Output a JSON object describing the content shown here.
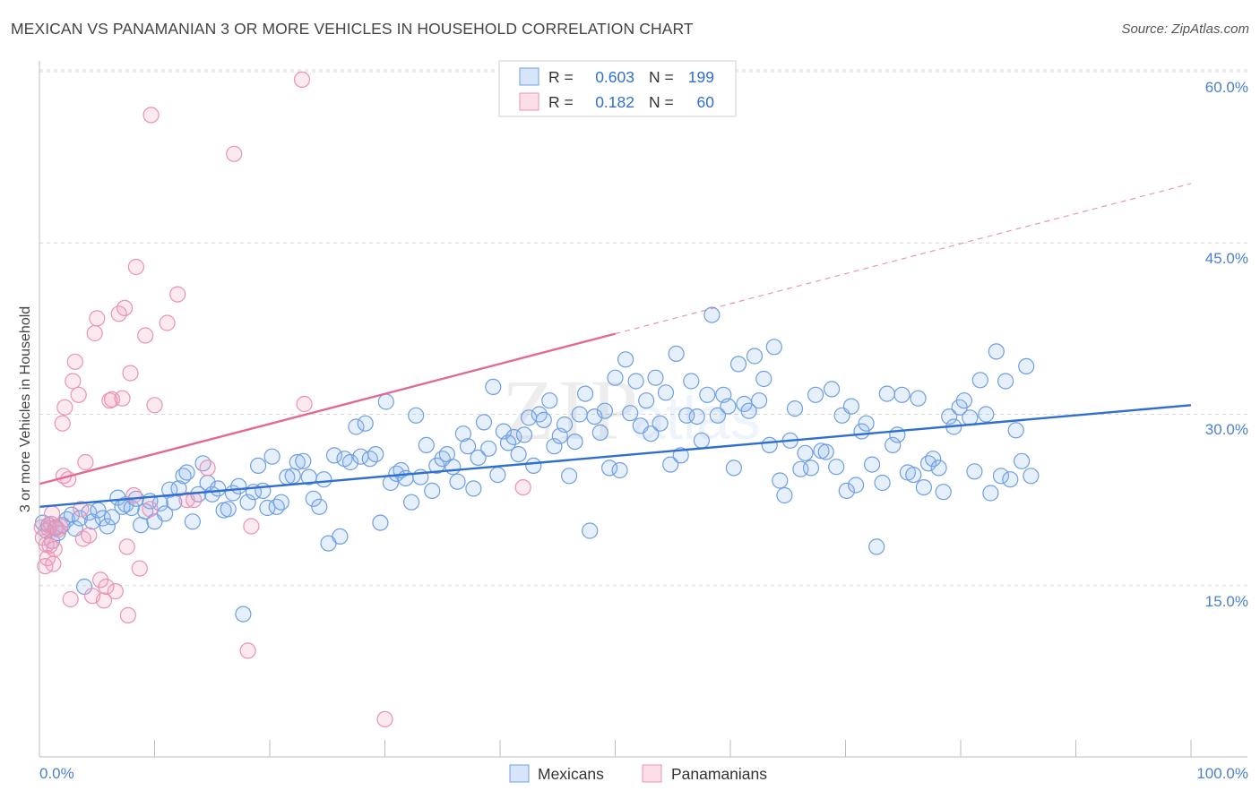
{
  "title": "MEXICAN VS PANAMANIAN 3 OR MORE VEHICLES IN HOUSEHOLD CORRELATION CHART",
  "source": "Source: ZipAtlas.com",
  "watermark": {
    "zip": "ZIP",
    "atlas": "atlas"
  },
  "colors": {
    "blue_fill": "rgba(140,180,240,0.22)",
    "blue_stroke": "#6f9fe0",
    "blue_line": "#2f6fd0",
    "pink_fill": "rgba(245,160,190,0.22)",
    "pink_stroke": "#e893b2",
    "pink_line": "#e06a94",
    "tick_label": "#4a7fd4",
    "grid": "#d8d8d8"
  },
  "stats": {
    "r_label": "R =",
    "n_label": "N =",
    "rows": [
      {
        "r": "0.603",
        "n": "199"
      },
      {
        "r": "0.182",
        "n": "60"
      }
    ]
  },
  "chart_data": {
    "type": "scatter",
    "title": "MEXICAN VS PANAMANIAN 3 OR MORE VEHICLES IN HOUSEHOLD CORRELATION CHART",
    "xlabel": "",
    "ylabel": "3 or more Vehicles in Household",
    "xlim": [
      0,
      100
    ],
    "ylim": [
      0,
      63
    ],
    "x_tick_labels": [
      "0.0%",
      "100.0%"
    ],
    "y_ticks": [
      15,
      30,
      45,
      60
    ],
    "y_tick_labels": [
      "15.0%",
      "30.0%",
      "45.0%",
      "60.0%"
    ],
    "grid": true,
    "legend_position": "bottom-center",
    "series": [
      {
        "name": "Mexicans",
        "regression": {
          "x": [
            0,
            100
          ],
          "y": [
            21.9,
            30.8
          ],
          "solid_to": 100
        },
        "points": [
          [
            0.3,
            20.5
          ],
          [
            0.6,
            19.8
          ],
          [
            0.8,
            20.3
          ],
          [
            1.1,
            18.9
          ],
          [
            1.4,
            20.1
          ],
          [
            1.6,
            19.6
          ],
          [
            2.0,
            20.3
          ],
          [
            2.4,
            20.8
          ],
          [
            2.8,
            21.2
          ],
          [
            3.1,
            20.0
          ],
          [
            3.5,
            20.9
          ],
          [
            3.9,
            14.9
          ],
          [
            4.3,
            21.4
          ],
          [
            4.6,
            20.6
          ],
          [
            5.1,
            21.6
          ],
          [
            5.5,
            20.9
          ],
          [
            5.9,
            20.2
          ],
          [
            6.3,
            21.0
          ],
          [
            6.8,
            22.7
          ],
          [
            7.2,
            21.9
          ],
          [
            7.5,
            22.1
          ],
          [
            8.0,
            21.8
          ],
          [
            8.4,
            22.6
          ],
          [
            8.8,
            20.3
          ],
          [
            9.2,
            21.5
          ],
          [
            9.6,
            22.4
          ],
          [
            10.0,
            20.6
          ],
          [
            10.5,
            22.2
          ],
          [
            10.9,
            21.3
          ],
          [
            11.3,
            23.4
          ],
          [
            11.7,
            22.3
          ],
          [
            12.1,
            23.5
          ],
          [
            12.5,
            24.6
          ],
          [
            12.8,
            24.9
          ],
          [
            13.3,
            20.6
          ],
          [
            13.8,
            23.0
          ],
          [
            14.2,
            25.7
          ],
          [
            14.6,
            24.0
          ],
          [
            15.0,
            23.0
          ],
          [
            15.5,
            23.5
          ],
          [
            16.0,
            21.6
          ],
          [
            16.4,
            21.7
          ],
          [
            16.8,
            23.1
          ],
          [
            17.3,
            23.7
          ],
          [
            17.7,
            12.5
          ],
          [
            18.1,
            22.3
          ],
          [
            18.6,
            23.2
          ],
          [
            19.0,
            25.5
          ],
          [
            19.4,
            23.3
          ],
          [
            19.8,
            21.8
          ],
          [
            20.2,
            26.3
          ],
          [
            20.6,
            21.9
          ],
          [
            21.0,
            22.3
          ],
          [
            21.5,
            24.5
          ],
          [
            22.0,
            24.6
          ],
          [
            22.4,
            25.8
          ],
          [
            22.9,
            25.9
          ],
          [
            23.4,
            24.5
          ],
          [
            23.8,
            22.6
          ],
          [
            24.3,
            21.9
          ],
          [
            24.7,
            24.3
          ],
          [
            25.1,
            18.7
          ],
          [
            25.6,
            26.4
          ],
          [
            26.1,
            19.3
          ],
          [
            26.5,
            26.1
          ],
          [
            27.0,
            25.8
          ],
          [
            27.5,
            28.9
          ],
          [
            27.9,
            26.3
          ],
          [
            28.3,
            29.2
          ],
          [
            28.7,
            26.1
          ],
          [
            29.2,
            26.5
          ],
          [
            29.6,
            20.5
          ],
          [
            30.1,
            31.1
          ],
          [
            30.5,
            24.0
          ],
          [
            31.0,
            24.8
          ],
          [
            31.4,
            25.1
          ],
          [
            31.8,
            24.4
          ],
          [
            32.3,
            22.3
          ],
          [
            32.7,
            29.9
          ],
          [
            33.1,
            24.5
          ],
          [
            33.6,
            27.3
          ],
          [
            34.1,
            23.3
          ],
          [
            34.5,
            25.5
          ],
          [
            35.0,
            26.1
          ],
          [
            35.4,
            26.5
          ],
          [
            35.9,
            25.4
          ],
          [
            36.3,
            24.1
          ],
          [
            36.8,
            28.3
          ],
          [
            37.2,
            27.2
          ],
          [
            37.7,
            23.5
          ],
          [
            38.1,
            26.2
          ],
          [
            38.6,
            29.3
          ],
          [
            39.0,
            27.0
          ],
          [
            39.4,
            32.4
          ],
          [
            39.8,
            24.7
          ],
          [
            40.3,
            28.5
          ],
          [
            40.7,
            27.5
          ],
          [
            41.2,
            28.0
          ],
          [
            41.6,
            26.5
          ],
          [
            42.1,
            28.2
          ],
          [
            42.5,
            29.7
          ],
          [
            42.9,
            25.5
          ],
          [
            43.4,
            30.0
          ],
          [
            43.8,
            29.5
          ],
          [
            44.3,
            31.2
          ],
          [
            44.7,
            27.2
          ],
          [
            45.2,
            28.1
          ],
          [
            45.6,
            29.1
          ],
          [
            46.0,
            24.6
          ],
          [
            46.5,
            27.6
          ],
          [
            46.9,
            30.0
          ],
          [
            47.4,
            31.8
          ],
          [
            47.8,
            19.8
          ],
          [
            48.2,
            29.8
          ],
          [
            48.7,
            28.4
          ],
          [
            49.1,
            30.3
          ],
          [
            49.5,
            25.3
          ],
          [
            50.0,
            33.2
          ],
          [
            50.4,
            25.1
          ],
          [
            50.9,
            34.8
          ],
          [
            51.3,
            30.1
          ],
          [
            51.8,
            32.9
          ],
          [
            52.2,
            29.0
          ],
          [
            52.7,
            31.2
          ],
          [
            53.1,
            28.3
          ],
          [
            53.5,
            33.2
          ],
          [
            53.9,
            29.2
          ],
          [
            54.4,
            31.9
          ],
          [
            54.8,
            25.6
          ],
          [
            55.3,
            35.3
          ],
          [
            55.7,
            26.4
          ],
          [
            56.2,
            29.9
          ],
          [
            56.6,
            32.9
          ],
          [
            57.1,
            29.8
          ],
          [
            57.5,
            27.7
          ],
          [
            58.0,
            31.7
          ],
          [
            58.4,
            38.7
          ],
          [
            58.9,
            29.9
          ],
          [
            59.4,
            31.7
          ],
          [
            59.8,
            30.7
          ],
          [
            60.3,
            25.3
          ],
          [
            60.7,
            34.4
          ],
          [
            61.2,
            30.9
          ],
          [
            61.6,
            30.3
          ],
          [
            62.1,
            35.1
          ],
          [
            62.5,
            31.2
          ],
          [
            62.9,
            33.1
          ],
          [
            63.4,
            27.3
          ],
          [
            63.8,
            35.9
          ],
          [
            64.3,
            24.2
          ],
          [
            64.7,
            22.9
          ],
          [
            65.2,
            27.7
          ],
          [
            65.6,
            30.5
          ],
          [
            66.1,
            25.2
          ],
          [
            66.5,
            26.6
          ],
          [
            67.0,
            25.3
          ],
          [
            67.4,
            31.7
          ],
          [
            67.9,
            26.8
          ],
          [
            68.3,
            26.7
          ],
          [
            68.8,
            32.2
          ],
          [
            69.2,
            25.4
          ],
          [
            69.7,
            29.9
          ],
          [
            70.1,
            23.3
          ],
          [
            70.5,
            30.7
          ],
          [
            70.9,
            23.8
          ],
          [
            71.4,
            28.5
          ],
          [
            71.8,
            29.2
          ],
          [
            72.3,
            25.6
          ],
          [
            72.7,
            18.4
          ],
          [
            73.2,
            24.0
          ],
          [
            73.6,
            31.8
          ],
          [
            74.1,
            27.3
          ],
          [
            74.5,
            28.2
          ],
          [
            74.9,
            31.7
          ],
          [
            75.4,
            24.9
          ],
          [
            75.9,
            24.7
          ],
          [
            76.3,
            31.4
          ],
          [
            76.8,
            23.6
          ],
          [
            77.2,
            25.7
          ],
          [
            77.6,
            26.1
          ],
          [
            78.1,
            25.3
          ],
          [
            78.5,
            23.2
          ],
          [
            79.0,
            29.8
          ],
          [
            79.4,
            28.9
          ],
          [
            79.9,
            30.6
          ],
          [
            80.3,
            31.2
          ],
          [
            80.8,
            29.7
          ],
          [
            81.2,
            25.0
          ],
          [
            81.7,
            33.0
          ],
          [
            82.2,
            30.0
          ],
          [
            82.6,
            23.1
          ],
          [
            83.1,
            35.5
          ],
          [
            83.5,
            24.6
          ],
          [
            83.9,
            32.9
          ],
          [
            84.3,
            24.3
          ],
          [
            84.8,
            28.6
          ],
          [
            85.3,
            25.9
          ],
          [
            85.7,
            34.2
          ],
          [
            86.1,
            24.6
          ]
        ]
      },
      {
        "name": "Panamanians",
        "regression": {
          "x": [
            0,
            100
          ],
          "y": [
            23.9,
            50.2
          ],
          "solid_to": 50
        },
        "points": [
          [
            0.2,
            20.1
          ],
          [
            0.3,
            19.2
          ],
          [
            0.5,
            16.7
          ],
          [
            0.6,
            18.6
          ],
          [
            0.7,
            17.4
          ],
          [
            0.8,
            20.0
          ],
          [
            0.9,
            18.5
          ],
          [
            1.0,
            20.4
          ],
          [
            1.1,
            21.3
          ],
          [
            1.2,
            16.9
          ],
          [
            1.4,
            20.0
          ],
          [
            1.6,
            19.9
          ],
          [
            1.8,
            20.2
          ],
          [
            2.0,
            29.2
          ],
          [
            2.2,
            30.6
          ],
          [
            2.5,
            24.3
          ],
          [
            2.7,
            13.8
          ],
          [
            2.9,
            32.9
          ],
          [
            3.1,
            34.6
          ],
          [
            3.4,
            31.7
          ],
          [
            3.6,
            21.7
          ],
          [
            3.8,
            19.1
          ],
          [
            4.0,
            25.8
          ],
          [
            4.3,
            19.4
          ],
          [
            4.6,
            14.1
          ],
          [
            4.8,
            37.1
          ],
          [
            5.0,
            38.4
          ],
          [
            5.3,
            15.5
          ],
          [
            5.6,
            13.7
          ],
          [
            5.8,
            14.9
          ],
          [
            6.1,
            31.2
          ],
          [
            6.3,
            31.3
          ],
          [
            6.6,
            14.5
          ],
          [
            6.9,
            38.8
          ],
          [
            7.2,
            31.4
          ],
          [
            7.4,
            39.3
          ],
          [
            7.6,
            18.4
          ],
          [
            7.7,
            12.4
          ],
          [
            7.9,
            33.6
          ],
          [
            8.2,
            22.9
          ],
          [
            8.4,
            42.9
          ],
          [
            8.7,
            16.5
          ],
          [
            9.2,
            36.9
          ],
          [
            9.6,
            21.7
          ],
          [
            9.7,
            56.2
          ],
          [
            10.0,
            30.8
          ],
          [
            11.1,
            38.0
          ],
          [
            12.0,
            40.5
          ],
          [
            12.8,
            22.5
          ],
          [
            13.4,
            22.5
          ],
          [
            14.6,
            25.3
          ],
          [
            16.9,
            52.8
          ],
          [
            18.1,
            9.3
          ],
          [
            18.4,
            20.2
          ],
          [
            22.8,
            59.3
          ],
          [
            23.0,
            30.9
          ],
          [
            30.0,
            3.3
          ],
          [
            42.0,
            23.6
          ],
          [
            1.3,
            18.2
          ],
          [
            2.1,
            24.6
          ]
        ]
      }
    ]
  },
  "legend": {
    "items": [
      {
        "label": "Mexicans"
      },
      {
        "label": "Panamanians"
      }
    ]
  }
}
